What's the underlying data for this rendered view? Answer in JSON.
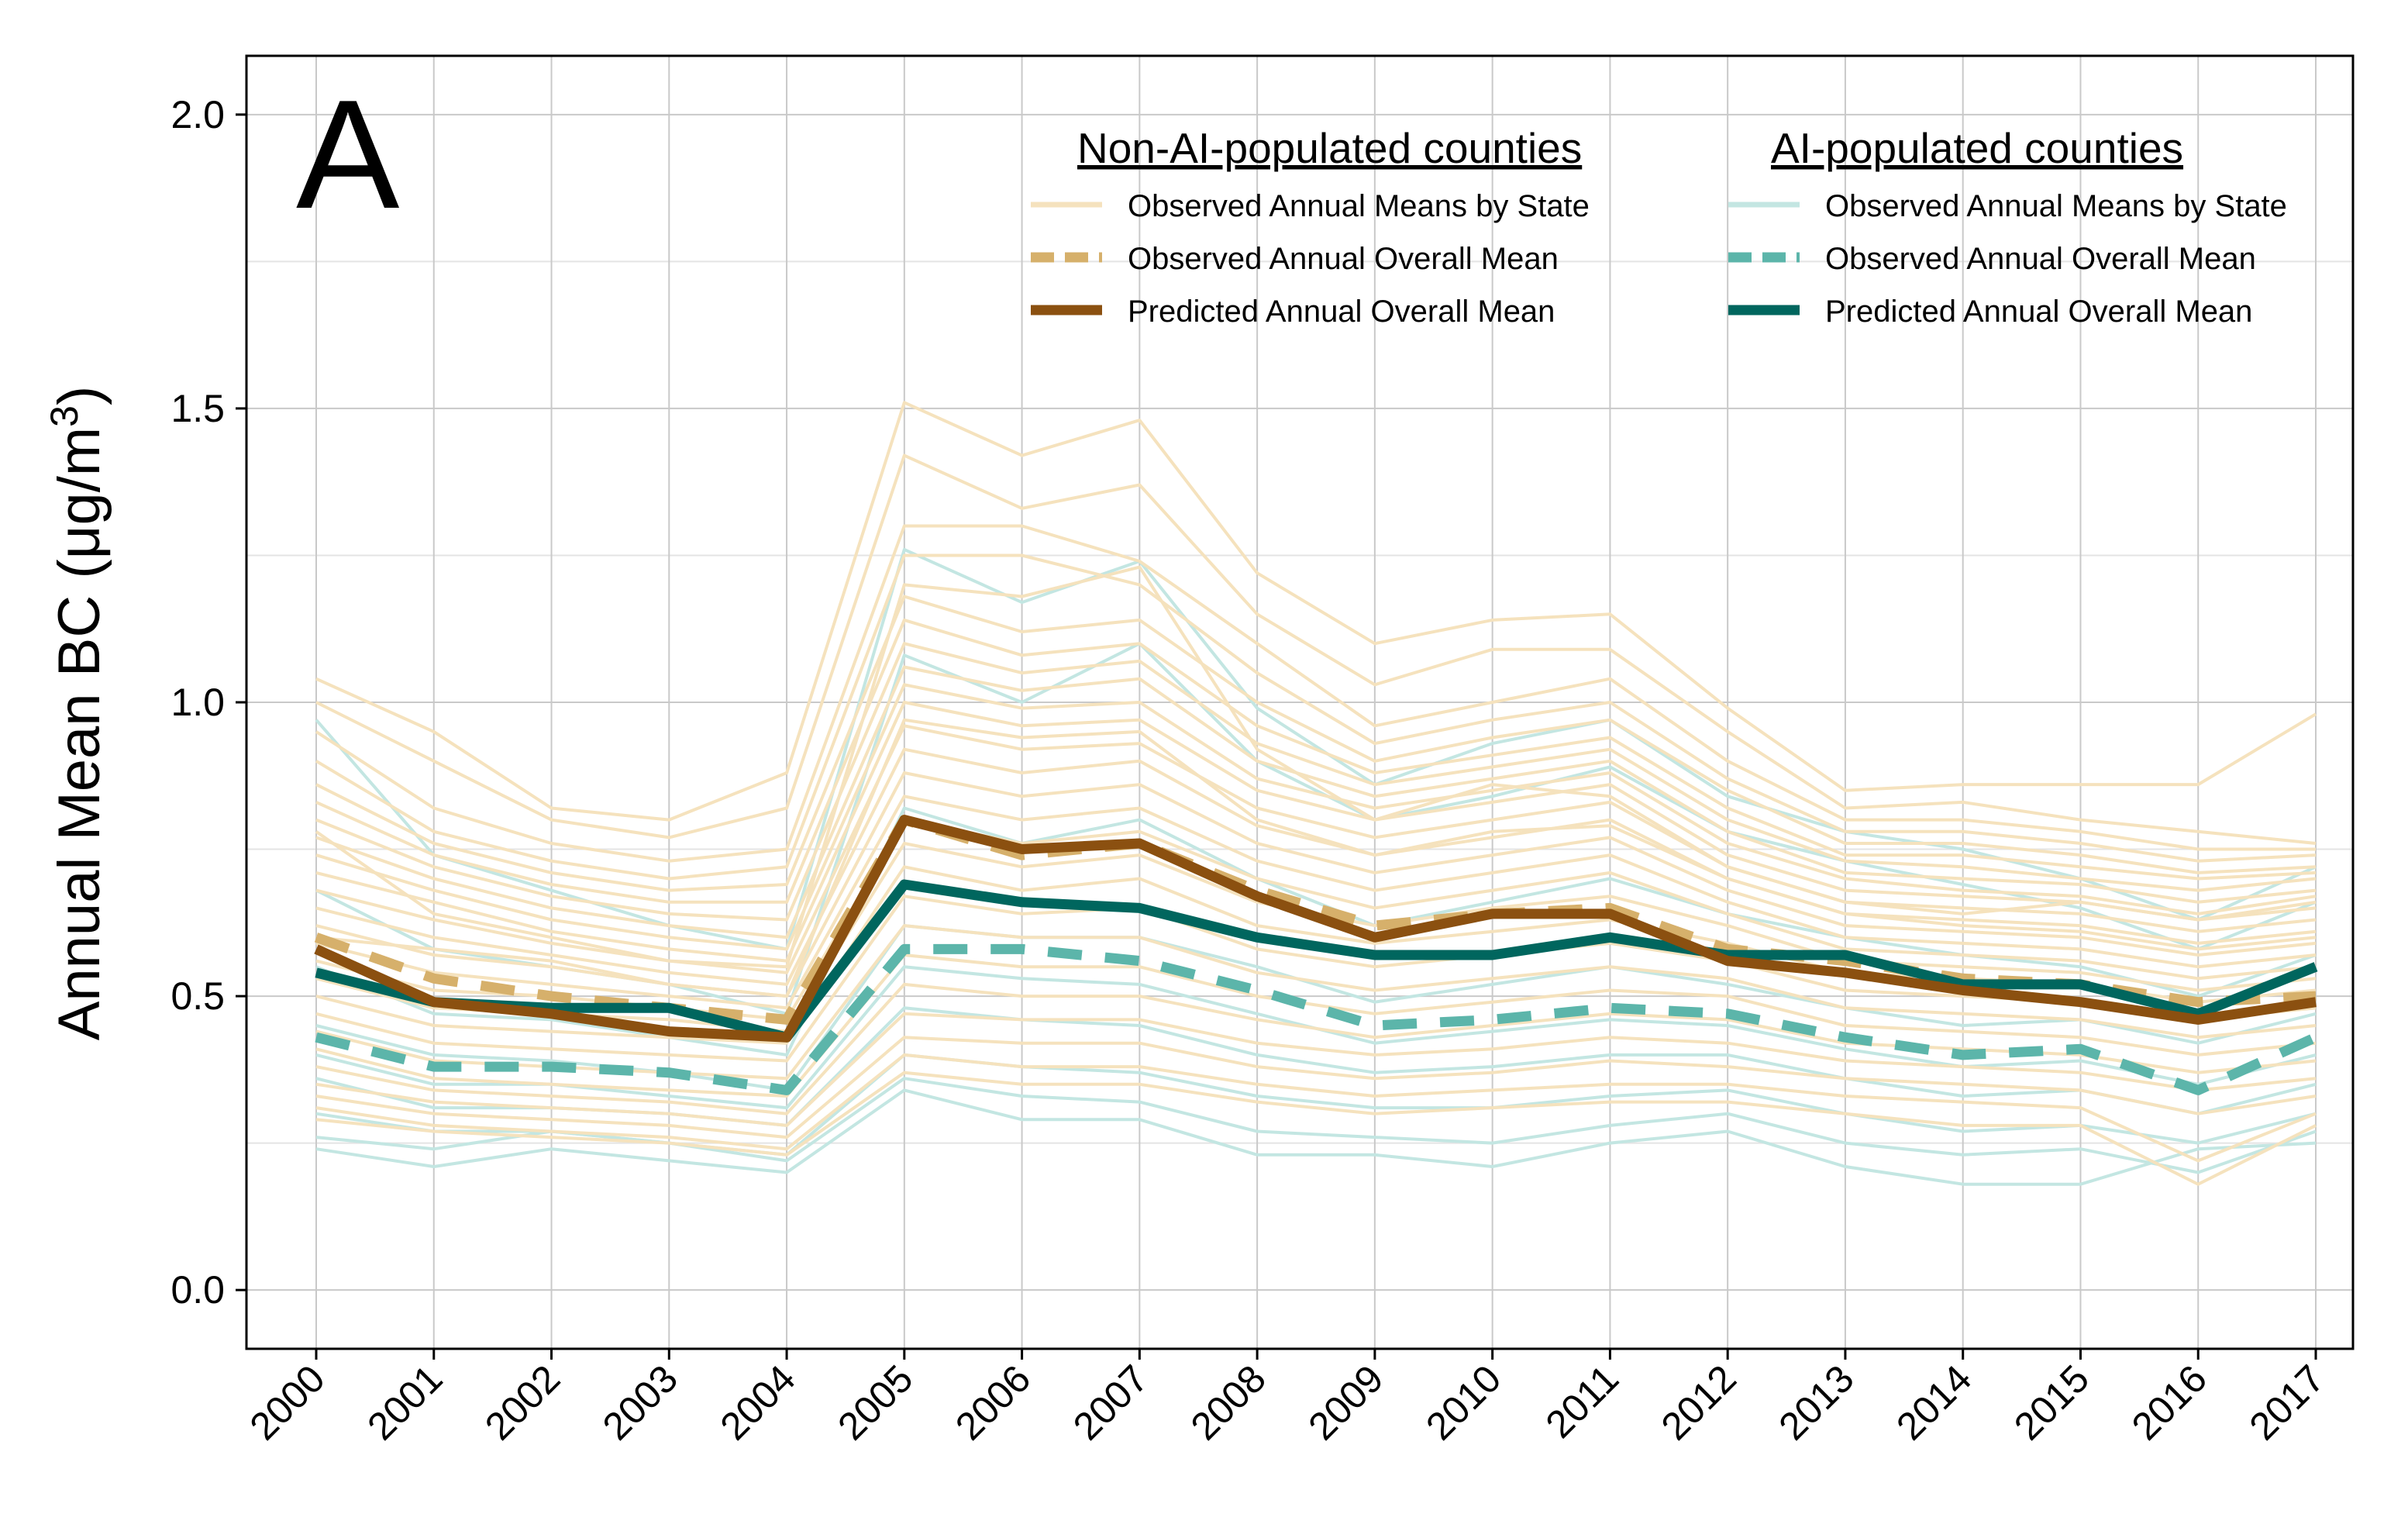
{
  "chart_data": {
    "type": "line",
    "panel_label": "A",
    "ylabel_main": "Annual Mean BC (μg/m",
    "ylabel_sup": "3",
    "ylabel_close": ")",
    "xlabel": "",
    "ylim": [
      -0.1,
      2.1
    ],
    "yticks": [
      0.0,
      0.5,
      1.0,
      1.5,
      2.0
    ],
    "ytick_labels": [
      "0.0",
      "0.5",
      "1.0",
      "1.5",
      "2.0"
    ],
    "x": [
      2000,
      2001,
      2002,
      2003,
      2004,
      2005,
      2006,
      2007,
      2008,
      2009,
      2010,
      2011,
      2012,
      2013,
      2014,
      2015,
      2016,
      2017
    ],
    "xtick_labels": [
      "2000",
      "2001",
      "2002",
      "2003",
      "2004",
      "2005",
      "2006",
      "2007",
      "2008",
      "2009",
      "2010",
      "2011",
      "2012",
      "2013",
      "2014",
      "2015",
      "2016",
      "2017"
    ],
    "grid": true,
    "colors": {
      "non_ai_state": "#f5e2bd",
      "non_ai_observed_mean": "#d6b06b",
      "non_ai_predicted_mean": "#8b5010",
      "ai_state": "#c3e6e2",
      "ai_observed_mean": "#5cb5aa",
      "ai_predicted_mean": "#00665e"
    },
    "legend": {
      "placement": "top-right",
      "groups": [
        {
          "title": "Non-AI-populated counties",
          "entries": [
            "Observed Annual Means by State",
            "Observed Annual Overall Mean",
            "Predicted Annual Overall Mean"
          ]
        },
        {
          "title": "AI-populated counties",
          "entries": [
            "Observed Annual Means by State",
            "Observed Annual Overall Mean",
            "Predicted Annual Overall Mean"
          ]
        }
      ]
    },
    "main_series": [
      {
        "key": "ai_observed",
        "style": "ai_observed_mean",
        "values": [
          0.43,
          0.38,
          0.38,
          0.37,
          0.34,
          0.58,
          0.58,
          0.56,
          0.51,
          0.45,
          0.46,
          0.48,
          0.47,
          0.43,
          0.4,
          0.41,
          0.34,
          0.43
        ]
      },
      {
        "key": "non_ai_observed",
        "style": "non_ai_observed_mean",
        "values": [
          0.6,
          0.53,
          0.5,
          0.48,
          0.46,
          0.8,
          0.74,
          0.76,
          0.68,
          0.62,
          0.64,
          0.65,
          0.58,
          0.56,
          0.53,
          0.52,
          0.49,
          0.5
        ]
      },
      {
        "key": "ai_predicted",
        "style": "ai_predicted_mean",
        "values": [
          0.54,
          0.49,
          0.48,
          0.48,
          0.43,
          0.69,
          0.66,
          0.65,
          0.6,
          0.57,
          0.57,
          0.6,
          0.57,
          0.57,
          0.52,
          0.52,
          0.47,
          0.55
        ]
      },
      {
        "key": "non_ai_predicted",
        "style": "non_ai_predicted_mean",
        "values": [
          0.58,
          0.49,
          0.47,
          0.44,
          0.43,
          0.8,
          0.75,
          0.76,
          0.67,
          0.6,
          0.64,
          0.64,
          0.56,
          0.54,
          0.51,
          0.49,
          0.46,
          0.49
        ]
      }
    ],
    "state_series_ai": [
      [
        0.97,
        0.74,
        0.68,
        0.62,
        0.58,
        1.26,
        1.17,
        1.24,
        0.99,
        0.86,
        0.93,
        0.97,
        0.84,
        0.78,
        0.75,
        0.7,
        0.63,
        0.72
      ],
      [
        0.68,
        0.58,
        0.55,
        0.52,
        0.47,
        1.08,
        1.0,
        1.1,
        0.9,
        0.8,
        0.84,
        0.89,
        0.78,
        0.73,
        0.69,
        0.65,
        0.58,
        0.66
      ],
      [
        0.55,
        0.47,
        0.46,
        0.43,
        0.4,
        0.82,
        0.76,
        0.8,
        0.7,
        0.62,
        0.66,
        0.7,
        0.64,
        0.6,
        0.57,
        0.55,
        0.5,
        0.57
      ],
      [
        0.45,
        0.4,
        0.39,
        0.37,
        0.34,
        0.62,
        0.6,
        0.6,
        0.55,
        0.49,
        0.52,
        0.55,
        0.52,
        0.48,
        0.45,
        0.46,
        0.42,
        0.47
      ],
      [
        0.4,
        0.35,
        0.35,
        0.33,
        0.31,
        0.55,
        0.53,
        0.52,
        0.47,
        0.42,
        0.44,
        0.46,
        0.45,
        0.41,
        0.38,
        0.39,
        0.35,
        0.4
      ],
      [
        0.36,
        0.31,
        0.31,
        0.3,
        0.28,
        0.48,
        0.46,
        0.45,
        0.4,
        0.37,
        0.38,
        0.4,
        0.4,
        0.36,
        0.33,
        0.34,
        0.3,
        0.35
      ],
      [
        0.3,
        0.27,
        0.27,
        0.25,
        0.23,
        0.4,
        0.38,
        0.37,
        0.33,
        0.31,
        0.31,
        0.33,
        0.34,
        0.3,
        0.27,
        0.28,
        0.25,
        0.3
      ],
      [
        0.24,
        0.21,
        0.24,
        0.22,
        0.2,
        0.34,
        0.29,
        0.29,
        0.23,
        0.23,
        0.21,
        0.25,
        0.27,
        0.21,
        0.18,
        0.18,
        0.24,
        0.25
      ],
      [
        0.26,
        0.24,
        0.27,
        0.25,
        0.22,
        0.36,
        0.33,
        0.32,
        0.27,
        0.26,
        0.25,
        0.28,
        0.3,
        0.25,
        0.23,
        0.24,
        0.2,
        0.27
      ]
    ],
    "state_series_non_ai": [
      [
        1.04,
        0.95,
        0.82,
        0.8,
        0.88,
        1.51,
        1.42,
        1.48,
        1.22,
        1.1,
        1.14,
        1.15,
        0.99,
        0.85,
        0.86,
        0.86,
        0.86,
        0.98
      ],
      [
        1.0,
        0.9,
        0.8,
        0.77,
        0.82,
        1.42,
        1.33,
        1.37,
        1.15,
        1.03,
        1.09,
        1.09,
        0.95,
        0.82,
        0.83,
        0.8,
        0.78,
        0.76
      ],
      [
        0.95,
        0.82,
        0.76,
        0.73,
        0.75,
        1.3,
        1.3,
        1.24,
        1.1,
        0.96,
        1.0,
        1.04,
        0.9,
        0.8,
        0.8,
        0.78,
        0.75,
        0.75
      ],
      [
        0.9,
        0.78,
        0.73,
        0.7,
        0.72,
        1.25,
        1.25,
        1.2,
        1.05,
        0.93,
        0.97,
        1.0,
        0.87,
        0.78,
        0.78,
        0.76,
        0.73,
        0.74
      ],
      [
        0.86,
        0.76,
        0.71,
        0.68,
        0.69,
        1.18,
        1.12,
        1.14,
        1.0,
        0.9,
        0.94,
        0.97,
        0.85,
        0.76,
        0.76,
        0.74,
        0.71,
        0.72
      ],
      [
        0.83,
        0.74,
        0.69,
        0.66,
        0.66,
        1.14,
        1.08,
        1.1,
        0.96,
        0.88,
        0.91,
        0.94,
        0.82,
        0.74,
        0.74,
        0.72,
        0.7,
        0.71
      ],
      [
        0.8,
        0.72,
        0.67,
        0.64,
        0.63,
        1.1,
        1.05,
        1.07,
        0.93,
        0.86,
        0.89,
        0.92,
        0.8,
        0.73,
        0.72,
        0.7,
        0.68,
        0.7
      ],
      [
        0.77,
        0.7,
        0.65,
        0.62,
        0.6,
        1.06,
        1.02,
        1.04,
        0.9,
        0.84,
        0.87,
        0.9,
        0.78,
        0.71,
        0.7,
        0.69,
        0.66,
        0.68
      ],
      [
        0.74,
        0.68,
        0.63,
        0.6,
        0.58,
        1.03,
        0.99,
        1.0,
        0.87,
        0.82,
        0.85,
        0.88,
        0.76,
        0.7,
        0.68,
        0.67,
        0.64,
        0.67
      ],
      [
        0.71,
        0.66,
        0.61,
        0.58,
        0.56,
        1.0,
        0.96,
        0.97,
        0.85,
        0.8,
        0.83,
        0.86,
        0.74,
        0.68,
        0.67,
        0.66,
        0.63,
        0.65
      ],
      [
        0.68,
        0.63,
        0.59,
        0.56,
        0.54,
        0.96,
        0.92,
        0.93,
        0.82,
        0.77,
        0.8,
        0.83,
        0.72,
        0.66,
        0.65,
        0.64,
        0.61,
        0.63
      ],
      [
        0.65,
        0.6,
        0.57,
        0.54,
        0.52,
        0.92,
        0.88,
        0.9,
        0.79,
        0.74,
        0.77,
        0.8,
        0.7,
        0.64,
        0.63,
        0.62,
        0.59,
        0.61
      ],
      [
        0.62,
        0.57,
        0.55,
        0.52,
        0.5,
        0.88,
        0.84,
        0.86,
        0.76,
        0.71,
        0.74,
        0.77,
        0.68,
        0.62,
        0.61,
        0.6,
        0.57,
        0.59
      ],
      [
        0.59,
        0.54,
        0.52,
        0.5,
        0.48,
        0.84,
        0.8,
        0.82,
        0.73,
        0.68,
        0.71,
        0.74,
        0.66,
        0.6,
        0.59,
        0.58,
        0.55,
        0.57
      ],
      [
        0.56,
        0.51,
        0.5,
        0.48,
        0.46,
        0.8,
        0.76,
        0.78,
        0.7,
        0.65,
        0.68,
        0.71,
        0.64,
        0.58,
        0.57,
        0.56,
        0.53,
        0.55
      ],
      [
        0.53,
        0.48,
        0.47,
        0.46,
        0.44,
        0.76,
        0.72,
        0.74,
        0.66,
        0.62,
        0.65,
        0.67,
        0.62,
        0.56,
        0.55,
        0.54,
        0.51,
        0.53
      ],
      [
        0.5,
        0.45,
        0.44,
        0.43,
        0.42,
        0.72,
        0.68,
        0.7,
        0.62,
        0.59,
        0.61,
        0.63,
        0.59,
        0.54,
        0.53,
        0.52,
        0.49,
        0.51
      ],
      [
        0.47,
        0.42,
        0.41,
        0.4,
        0.39,
        0.67,
        0.64,
        0.65,
        0.58,
        0.55,
        0.57,
        0.59,
        0.56,
        0.51,
        0.5,
        0.49,
        0.46,
        0.48
      ],
      [
        0.44,
        0.39,
        0.38,
        0.37,
        0.36,
        0.62,
        0.6,
        0.6,
        0.54,
        0.51,
        0.53,
        0.55,
        0.53,
        0.48,
        0.47,
        0.46,
        0.43,
        0.45
      ],
      [
        0.41,
        0.36,
        0.35,
        0.34,
        0.33,
        0.57,
        0.55,
        0.55,
        0.5,
        0.47,
        0.49,
        0.51,
        0.5,
        0.45,
        0.44,
        0.43,
        0.4,
        0.42
      ],
      [
        0.38,
        0.34,
        0.33,
        0.32,
        0.3,
        0.52,
        0.5,
        0.5,
        0.46,
        0.43,
        0.45,
        0.47,
        0.46,
        0.42,
        0.41,
        0.4,
        0.37,
        0.39
      ],
      [
        0.35,
        0.32,
        0.31,
        0.3,
        0.28,
        0.47,
        0.46,
        0.46,
        0.42,
        0.4,
        0.41,
        0.43,
        0.42,
        0.39,
        0.38,
        0.37,
        0.34,
        0.36
      ],
      [
        0.33,
        0.3,
        0.29,
        0.28,
        0.26,
        0.43,
        0.42,
        0.42,
        0.38,
        0.36,
        0.37,
        0.39,
        0.38,
        0.36,
        0.35,
        0.34,
        0.3,
        0.33
      ],
      [
        0.31,
        0.28,
        0.27,
        0.26,
        0.24,
        0.4,
        0.38,
        0.38,
        0.35,
        0.33,
        0.34,
        0.35,
        0.35,
        0.33,
        0.32,
        0.31,
        0.22,
        0.3
      ],
      [
        0.29,
        0.27,
        0.26,
        0.25,
        0.23,
        0.37,
        0.35,
        0.35,
        0.32,
        0.3,
        0.31,
        0.32,
        0.32,
        0.3,
        0.28,
        0.28,
        0.18,
        0.28
      ],
      [
        0.78,
        0.64,
        0.6,
        0.56,
        0.55,
        1.2,
        1.18,
        1.23,
        0.92,
        0.8,
        0.86,
        0.84,
        0.72,
        0.66,
        0.64,
        0.66,
        0.63,
        0.66
      ],
      [
        0.6,
        0.58,
        0.56,
        0.52,
        0.5,
        0.97,
        0.94,
        0.95,
        0.8,
        0.74,
        0.78,
        0.79,
        0.7,
        0.64,
        0.62,
        0.61,
        0.58,
        0.6
      ]
    ]
  }
}
